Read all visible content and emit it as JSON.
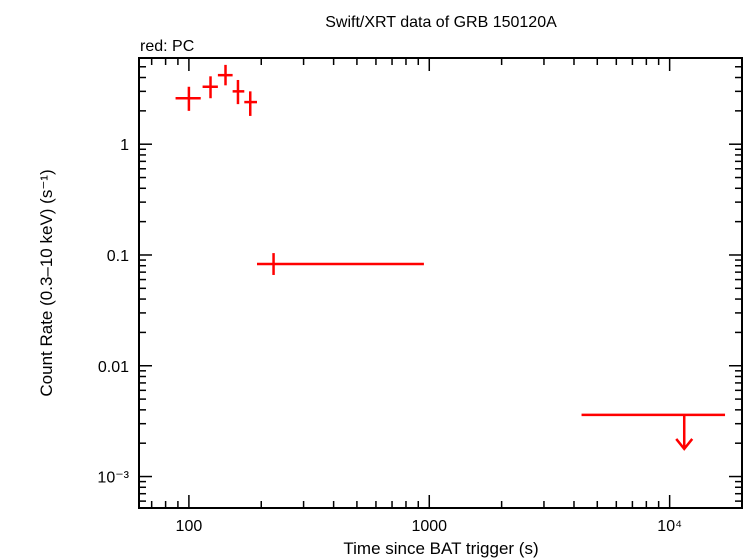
{
  "chart_data": {
    "type": "scatter",
    "title": "Swift/XRT data of GRB 150120A",
    "subtitle": "red: PC",
    "xlabel": "Time since BAT trigger (s)",
    "ylabel": "Count Rate (0.3–10 keV) (s⁻¹)",
    "x_scale": "log",
    "y_scale": "log",
    "xlim": [
      62,
      20000
    ],
    "ylim": [
      0.00052,
      6.0
    ],
    "grid": false,
    "x_ticks": [
      {
        "value": 100,
        "label": "100"
      },
      {
        "value": 1000,
        "label": "1000"
      },
      {
        "value": 10000,
        "label": "10⁴"
      }
    ],
    "y_ticks": [
      {
        "value": 1,
        "label": "1"
      },
      {
        "value": 0.1,
        "label": "0.1"
      },
      {
        "value": 0.01,
        "label": "0.01"
      },
      {
        "value": 0.001,
        "label": "10⁻³"
      }
    ],
    "series": [
      {
        "color": "#ff0000",
        "points": [
          {
            "x": 100,
            "xerr": [
              88,
              112
            ],
            "y": 2.6,
            "yerr": [
              2.0,
              3.3
            ]
          },
          {
            "x": 123,
            "xerr": [
              114,
              132
            ],
            "y": 3.3,
            "yerr": [
              2.6,
              4.1
            ]
          },
          {
            "x": 142,
            "xerr": [
              132,
              152
            ],
            "y": 4.2,
            "yerr": [
              3.4,
              5.2
            ]
          },
          {
            "x": 160,
            "xerr": [
              152,
              170
            ],
            "y": 3.0,
            "yerr": [
              2.3,
              3.8
            ]
          },
          {
            "x": 180,
            "xerr": [
              170,
              192
            ],
            "y": 2.4,
            "yerr": [
              1.8,
              3.0
            ]
          },
          {
            "x": 225,
            "xerr": [
              192,
              950
            ],
            "y": 0.083,
            "yerr": [
              0.066,
              0.104
            ]
          },
          {
            "x": 11500,
            "xerr": [
              4300,
              17000
            ],
            "y": 0.0036,
            "upper_limit": true
          }
        ]
      }
    ]
  }
}
